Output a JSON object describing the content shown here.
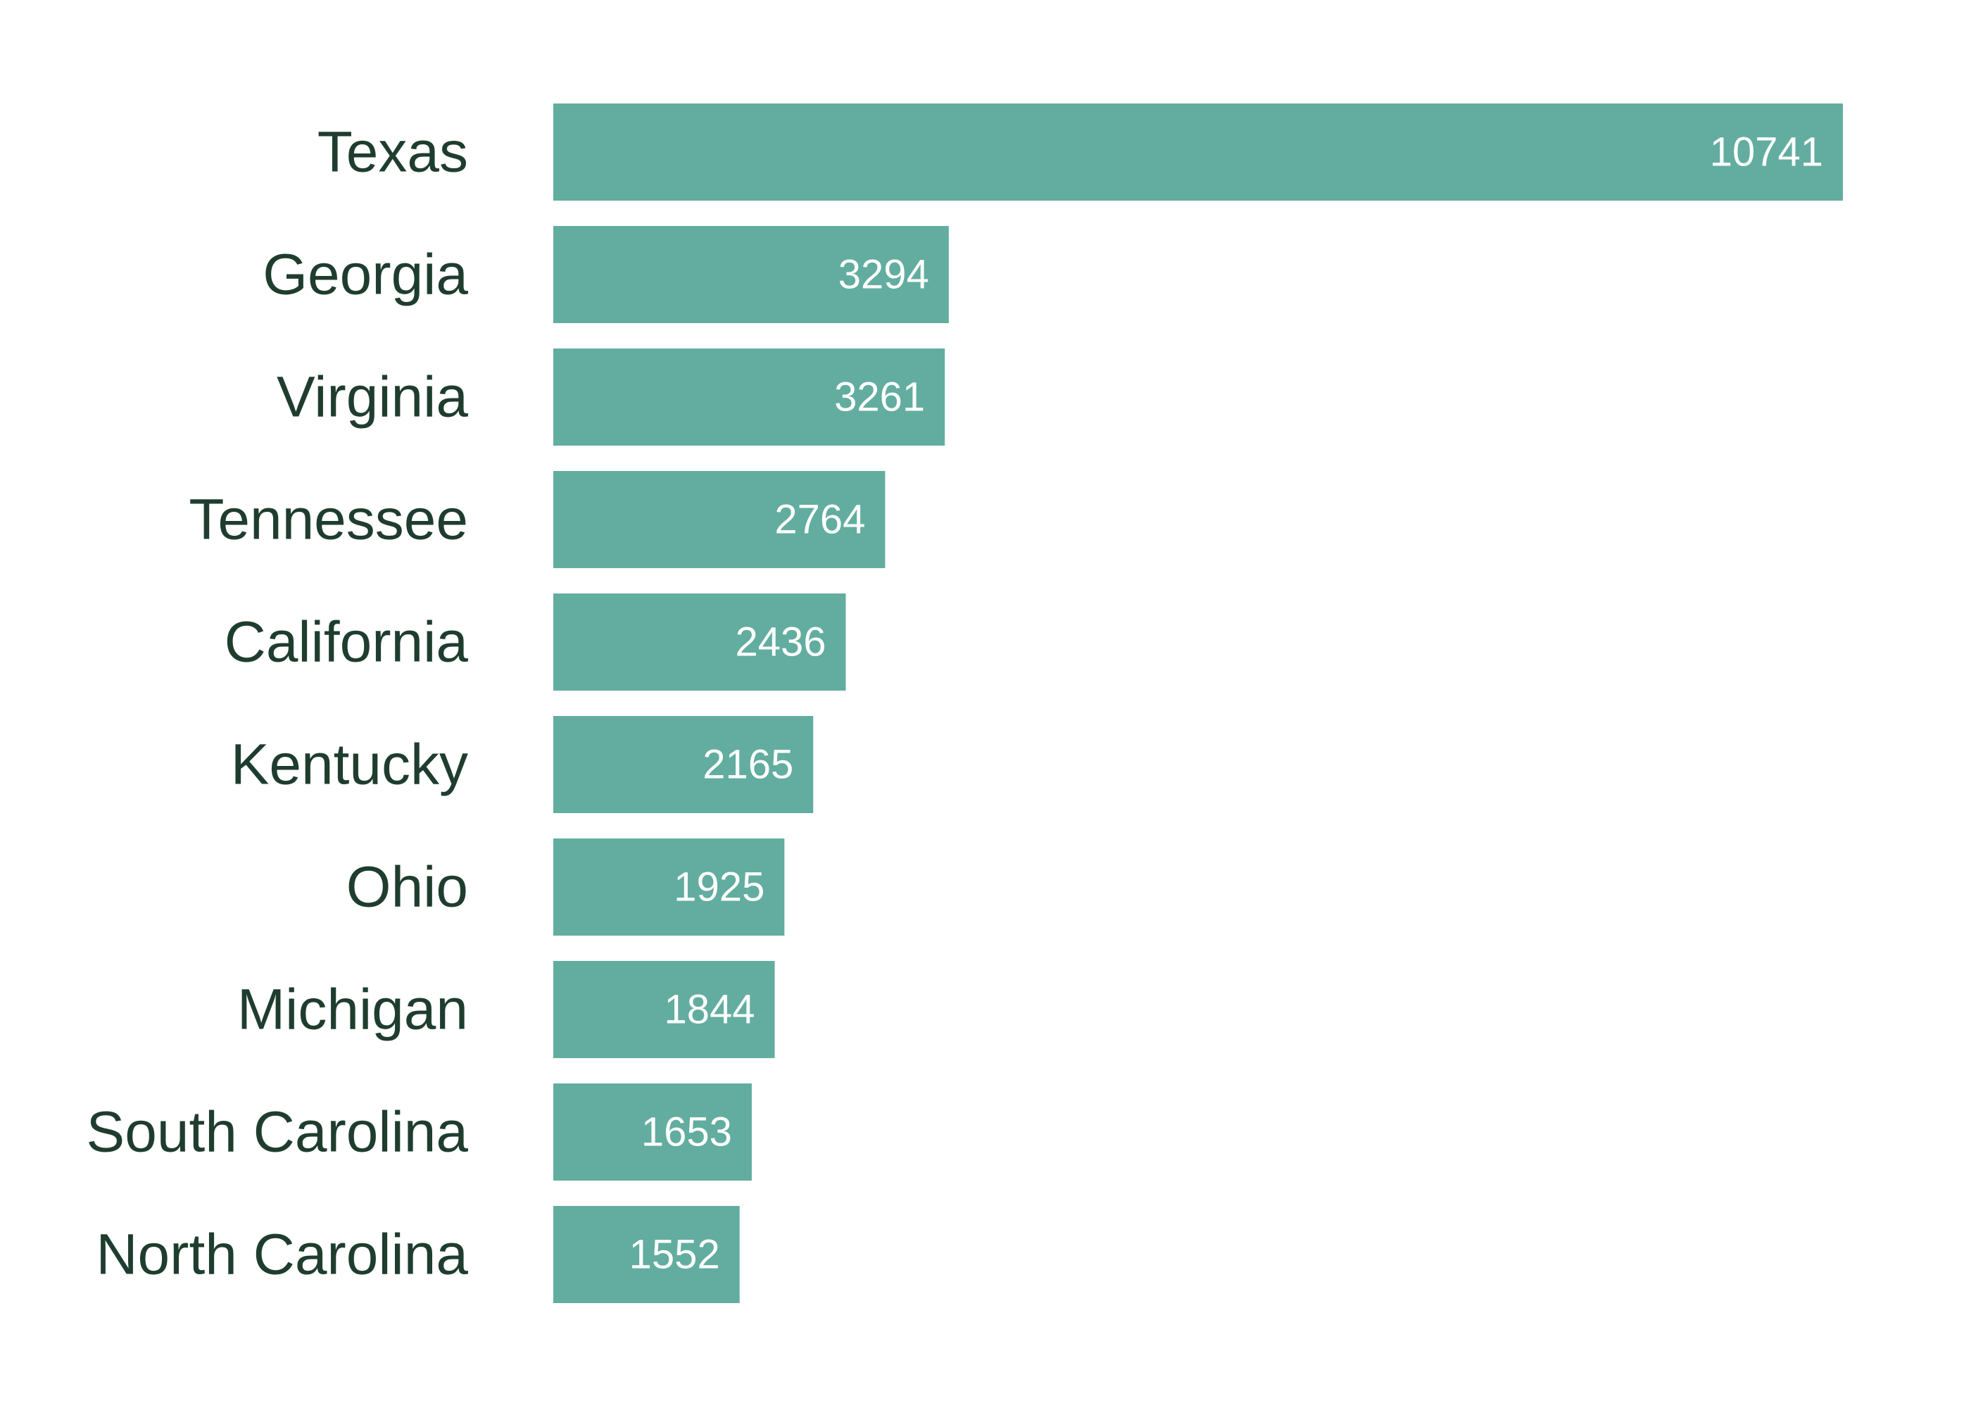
{
  "colors": {
    "bar": "#62ad9f",
    "category_text": "#1f3d2e",
    "value_text": "#ffffff",
    "background": "#ffffff"
  },
  "chart_data": {
    "type": "bar",
    "orientation": "horizontal",
    "title": "",
    "xlabel": "",
    "ylabel": "",
    "grid": false,
    "legend": "none",
    "xlim": [
      0,
      10741
    ],
    "categories": [
      "Texas",
      "Georgia",
      "Virginia",
      "Tennessee",
      "California",
      "Kentucky",
      "Ohio",
      "Michigan",
      "South Carolina",
      "North Carolina"
    ],
    "values": [
      10741,
      3294,
      3261,
      2764,
      2436,
      2165,
      1925,
      1844,
      1653,
      1552
    ],
    "value_labels": [
      "10741",
      "3294",
      "3261",
      "2764",
      "2436",
      "2165",
      "1925",
      "1844",
      "1653",
      "1552"
    ]
  }
}
